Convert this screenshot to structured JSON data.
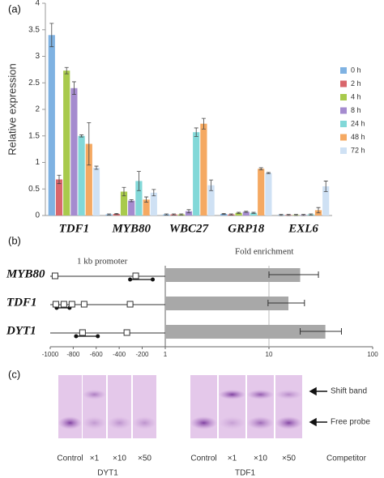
{
  "chart_data": [
    {
      "type": "bar",
      "panel": "(a)",
      "y_label": "Relative expression",
      "categories": [
        "TDF1",
        "MYB80",
        "WBC27",
        "GRP18",
        "EXL6"
      ],
      "ylim": [
        0,
        4
      ],
      "yticks": [
        0,
        0.5,
        1,
        1.5,
        2,
        2.5,
        3,
        3.5,
        4
      ],
      "series": [
        {
          "name": "0 h",
          "color": "#7fb2e2",
          "values": [
            3.4,
            0.02,
            0.02,
            0.03,
            0.01
          ],
          "errors": [
            0.22,
            0.01,
            0.01,
            0.01,
            0.01
          ]
        },
        {
          "name": "2 h",
          "color": "#d9666c",
          "values": [
            0.68,
            0.03,
            0.02,
            0.02,
            0.01
          ],
          "errors": [
            0.08,
            0.01,
            0.01,
            0.01,
            0.01
          ]
        },
        {
          "name": "4 h",
          "color": "#a8ca4c",
          "values": [
            2.73,
            0.45,
            0.02,
            0.05,
            0.01
          ],
          "errors": [
            0.06,
            0.08,
            0.01,
            0.01,
            0.01
          ]
        },
        {
          "name": "8 h",
          "color": "#a58bcf",
          "values": [
            2.4,
            0.28,
            0.08,
            0.07,
            0.01
          ],
          "errors": [
            0.12,
            0.02,
            0.03,
            0.01,
            0.01
          ]
        },
        {
          "name": "24 h",
          "color": "#82d8d8",
          "values": [
            1.5,
            0.65,
            1.57,
            0.05,
            0.02
          ],
          "errors": [
            0.02,
            0.18,
            0.08,
            0.01,
            0.01
          ]
        },
        {
          "name": "48 h",
          "color": "#f5a962",
          "values": [
            1.35,
            0.3,
            1.73,
            0.88,
            0.1
          ],
          "errors": [
            0.4,
            0.05,
            0.1,
            0.02,
            0.05
          ]
        },
        {
          "name": "72 h",
          "color": "#cfe1f4",
          "values": [
            0.9,
            0.43,
            0.57,
            0.8,
            0.55
          ],
          "errors": [
            0.03,
            0.06,
            0.1,
            0.01,
            0.1
          ]
        }
      ]
    },
    {
      "type": "hbar",
      "panel": "(b)",
      "x_label": "Fold enrichment",
      "promoter_label": "1 kb promoter",
      "categories": [
        "MYB80",
        "TDF1",
        "DYT1"
      ],
      "color": "#a8a8a8",
      "values": [
        20,
        15.4,
        35
      ],
      "error_lower": [
        10,
        9.8,
        20
      ],
      "error_upper": [
        30,
        22,
        50
      ],
      "log_x": true,
      "xlim": [
        1,
        100
      ],
      "xticks": [
        1,
        10,
        100
      ],
      "promoter_xlim": [
        -1000,
        1
      ],
      "promoter_xticks": [
        -1000,
        -800,
        -600,
        -400,
        -200
      ],
      "motifs": [
        [
          -958,
          -256
        ],
        [
          -951,
          -881,
          -811,
          -705,
          -305
        ],
        [
          -719,
          -333
        ]
      ],
      "probes": [
        [
          -305,
          -108
        ],
        [
          -944,
          -832
        ],
        [
          -775,
          -586
        ]
      ]
    }
  ],
  "gel": {
    "panel": "(c)",
    "lanes": [
      "Control",
      "×1",
      "×10",
      "×50"
    ],
    "groups": [
      "DYT1",
      "TDF1"
    ],
    "competitor": "Competitor",
    "shift_band": "Shift band",
    "free_probe": "Free probe"
  }
}
